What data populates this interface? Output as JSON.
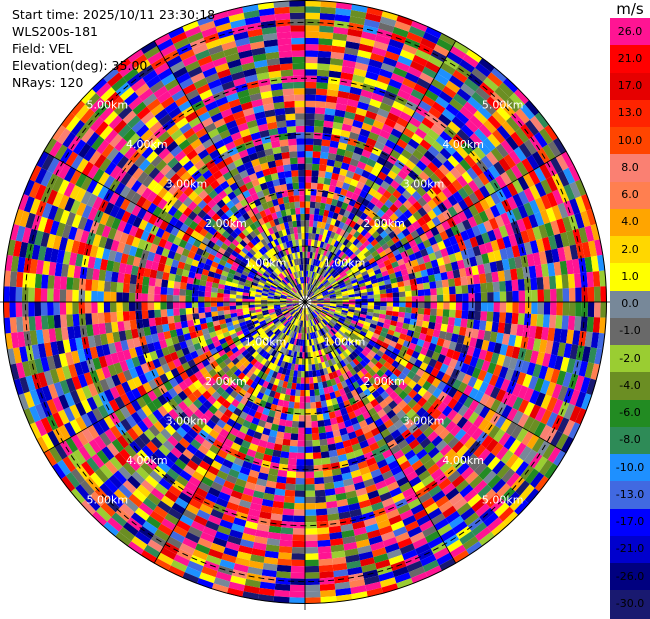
{
  "header": {
    "start_time": "Start time: 2025/10/11 23:30:18",
    "instrument": "WLS200s-181",
    "field": "Field: VEL",
    "elevation": "Elevation(deg): 35.00",
    "nrays": "NRays: 120"
  },
  "colorbar": {
    "unit": "m/s",
    "ticks": [
      "26.0",
      "21.0",
      "17.0",
      "13.0",
      "10.0",
      "8.0",
      "6.0",
      "4.0",
      "2.0",
      "1.0",
      "0.0",
      "-1.0",
      "-2.0",
      "-4.0",
      "-6.0",
      "-8.0",
      "-10.0",
      "-13.0",
      "-17.0",
      "-21.0",
      "-26.0",
      "-30.0"
    ],
    "colors": [
      "#ff1493",
      "#ff0000",
      "#e60000",
      "#ff2400",
      "#ff4500",
      "#fa8072",
      "#ff7f50",
      "#ffa500",
      "#ffd700",
      "#ffff00",
      "#778899",
      "#696969",
      "#9acd32",
      "#6b8e23",
      "#228b22",
      "#2e8b57",
      "#1e90ff",
      "#4169e1",
      "#0000ff",
      "#0000cd",
      "#000080",
      "#191970"
    ]
  },
  "chart_data": {
    "type": "heatmap",
    "projection": "polar",
    "field": "VEL",
    "nrays": 120,
    "elevation_deg": 35.0,
    "range_ring_labels": [
      "1.00km",
      "2.00km",
      "3.00km",
      "4.00km",
      "5.00km"
    ],
    "range_rings_km": [
      1.0,
      2.0,
      3.0,
      4.0,
      5.0
    ],
    "range_max_km": 5.4,
    "value_unit": "m/s"
  }
}
